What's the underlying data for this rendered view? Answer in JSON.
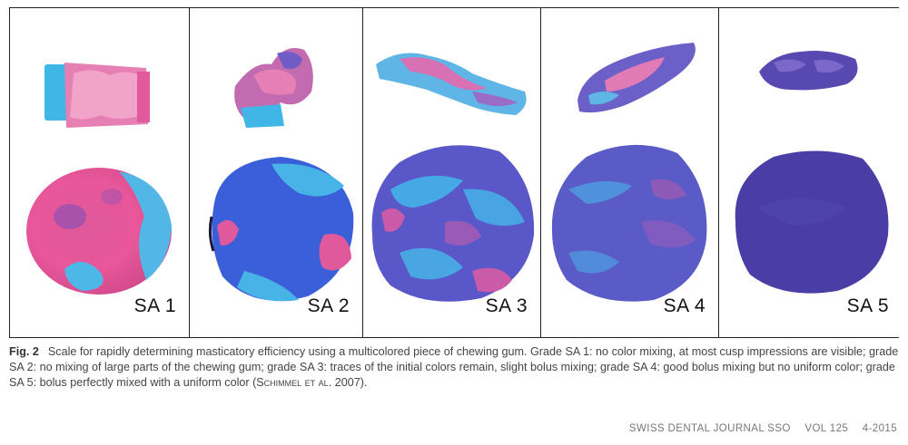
{
  "figure": {
    "panels": [
      {
        "label": "SA 1"
      },
      {
        "label": "SA 2"
      },
      {
        "label": "SA 3"
      },
      {
        "label": "SA 4"
      },
      {
        "label": "SA 5"
      }
    ],
    "colors": {
      "pink": "#e8579a",
      "cyan": "#3fb6e6",
      "blue": "#3b56d6",
      "violet": "#5b4bb8",
      "purple": "#4a3ea6"
    }
  },
  "caption": {
    "label": "Fig. 2",
    "text_main": "Scale for rapidly determining masticatory efficiency using a multicolored piece of chewing gum. Grade SA 1: no color mixing, at most cusp impressions are visible; grade SA 2: no mixing of large parts of the chewing gum; grade SA 3: traces of the initial colors remain, slight bolus mixing; grade SA 4: good bolus mixing but no uniform color; grade SA 5: bolus perfectly mixed with a uniform color (",
    "citation_author": "Schimmel et al.",
    "citation_year": " 2007)."
  },
  "footer": {
    "journal": "SWISS DENTAL JOURNAL SSO",
    "volume": "VOL 125",
    "issue": "4-2015"
  }
}
